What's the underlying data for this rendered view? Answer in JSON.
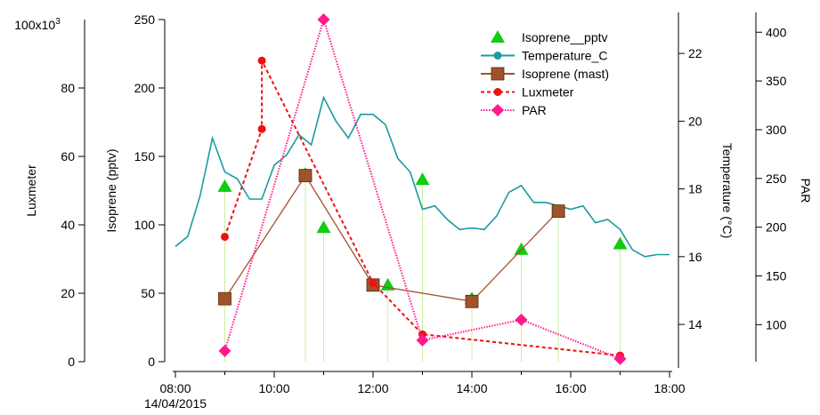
{
  "chart_data": {
    "type": "line",
    "x_axis": {
      "ticks": [
        "08:00",
        "10:00",
        "12:00",
        "14:00",
        "16:00",
        "18:00"
      ],
      "start_label": "14/04/2015",
      "range_hours": [
        8,
        18
      ]
    },
    "axes": {
      "luxmeter": {
        "label": "Luxmeter",
        "range": [
          0,
          100000
        ],
        "ticks": [
          "0",
          "20",
          "40",
          "60",
          "80"
        ],
        "multiplier_label": "100x10",
        "multiplier_exp": "3"
      },
      "isoprene": {
        "label": "Isoprene (pptv)",
        "range": [
          0,
          250
        ],
        "ticks": [
          "0",
          "50",
          "100",
          "150",
          "200",
          "250"
        ]
      },
      "temperature": {
        "label": "Temperature (°C)",
        "range": [
          12.9,
          23
        ],
        "ticks": [
          "14",
          "16",
          "18",
          "20",
          "22"
        ]
      },
      "par": {
        "label": "PAR",
        "range": [
          62,
          413
        ],
        "ticks": [
          "100",
          "150",
          "200",
          "250",
          "300",
          "350",
          "400"
        ]
      }
    },
    "legend": {
      "position": "top-right",
      "items": [
        "Isoprene__pptv",
        "Temperature_C",
        "Isoprene (mast)",
        "Luxmeter",
        "PAR"
      ]
    },
    "series": [
      {
        "name": "Isoprene__pptv",
        "axis": "isoprene",
        "color": "#11cc11",
        "style": "markers-with-drop-lines",
        "marker": "triangle",
        "points": [
          [
            9.0,
            128
          ],
          [
            10.63,
            137
          ],
          [
            11.0,
            98
          ],
          [
            12.3,
            56
          ],
          [
            13.0,
            133
          ],
          [
            14.0,
            46
          ],
          [
            15.0,
            82
          ],
          [
            15.75,
            110
          ],
          [
            17.0,
            86
          ]
        ]
      },
      {
        "name": "Temperature_C",
        "axis": "temperature",
        "color": "#1a9ba0",
        "style": "line",
        "points": [
          [
            8.0,
            16.3
          ],
          [
            8.25,
            16.6
          ],
          [
            8.5,
            17.8
          ],
          [
            8.75,
            19.5
          ],
          [
            9.0,
            18.5
          ],
          [
            9.25,
            18.3
          ],
          [
            9.5,
            17.7
          ],
          [
            9.75,
            17.7
          ],
          [
            10.0,
            18.7
          ],
          [
            10.25,
            19.0
          ],
          [
            10.5,
            19.6
          ],
          [
            10.75,
            19.3
          ],
          [
            11.0,
            20.7
          ],
          [
            11.25,
            20.0
          ],
          [
            11.5,
            19.5
          ],
          [
            11.75,
            20.2
          ],
          [
            12.0,
            20.2
          ],
          [
            12.25,
            19.9
          ],
          [
            12.5,
            18.9
          ],
          [
            12.75,
            18.5
          ],
          [
            13.0,
            17.4
          ],
          [
            13.25,
            17.5
          ],
          [
            13.5,
            17.1
          ],
          [
            13.75,
            16.8
          ],
          [
            14.0,
            16.85
          ],
          [
            14.25,
            16.8
          ],
          [
            14.5,
            17.2
          ],
          [
            14.75,
            17.9
          ],
          [
            15.0,
            18.1
          ],
          [
            15.25,
            17.6
          ],
          [
            15.5,
            17.6
          ],
          [
            15.75,
            17.5
          ],
          [
            16.0,
            17.4
          ],
          [
            16.25,
            17.5
          ],
          [
            16.5,
            17.0
          ],
          [
            16.75,
            17.1
          ],
          [
            17.0,
            16.8
          ],
          [
            17.25,
            16.2
          ],
          [
            17.5,
            16.0
          ],
          [
            17.75,
            16.06
          ],
          [
            18.0,
            16.06
          ]
        ]
      },
      {
        "name": "Isoprene (mast)",
        "axis": "isoprene",
        "color": "#a0522d",
        "style": "line-markers",
        "marker": "square",
        "points": [
          [
            9.0,
            46
          ],
          [
            10.63,
            136
          ],
          [
            12.0,
            56
          ],
          [
            14.0,
            44
          ],
          [
            15.75,
            110
          ]
        ]
      },
      {
        "name": "Luxmeter",
        "axis": "luxmeter",
        "color": "#ee1111",
        "style": "dashed-line-markers",
        "marker": "circle",
        "points": [
          [
            9.0,
            36500
          ],
          [
            9.75,
            68000
          ],
          [
            9.75,
            88000
          ],
          [
            12.0,
            23000
          ],
          [
            13.0,
            8000
          ],
          [
            17.0,
            1800
          ]
        ]
      },
      {
        "name": "PAR",
        "axis": "par",
        "color": "#ff1a8c",
        "style": "dotted-line-markers",
        "marker": "diamond",
        "points": [
          [
            9.0,
            73
          ],
          [
            11.0,
            413
          ],
          [
            13.0,
            84
          ],
          [
            15.0,
            105
          ],
          [
            17.0,
            65
          ]
        ]
      }
    ]
  }
}
